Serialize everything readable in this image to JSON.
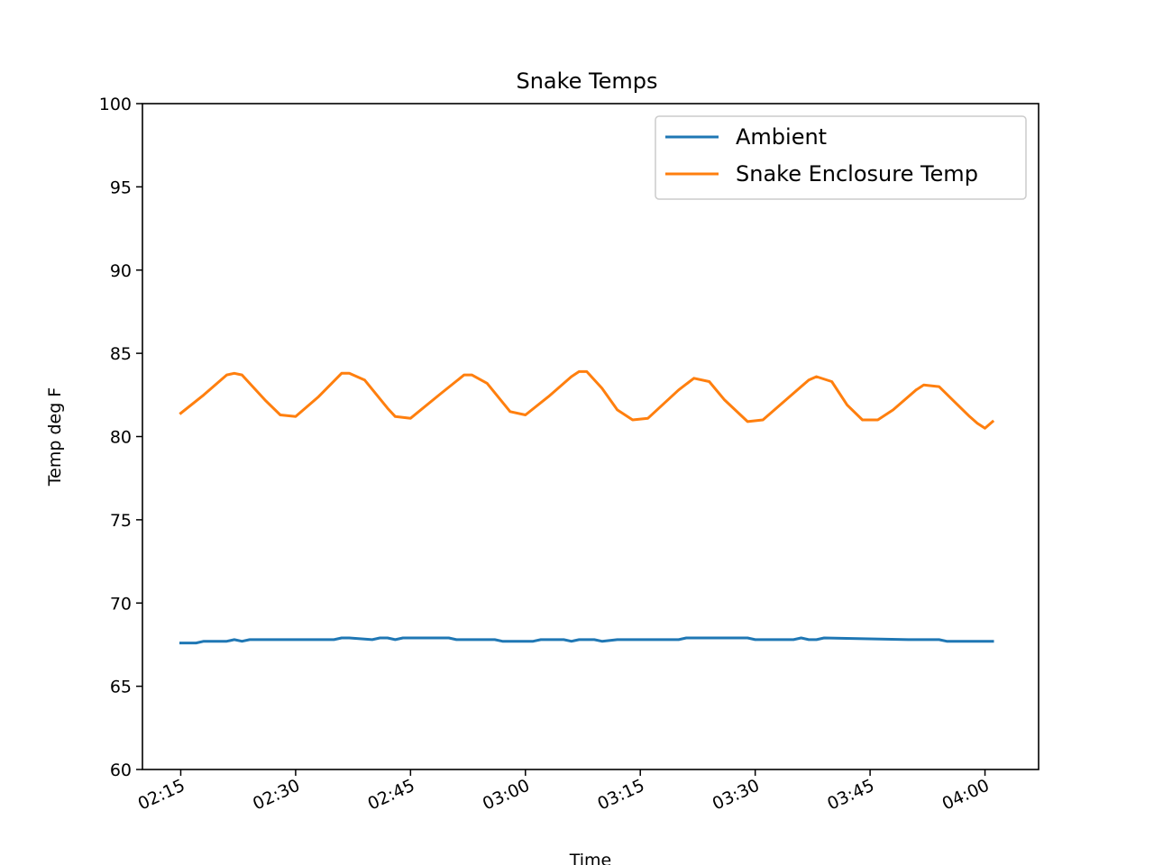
{
  "chart_data": {
    "type": "line",
    "title": "Snake Temps",
    "xlabel": "Time",
    "ylabel": "Temp deg F",
    "ylim": [
      60,
      100
    ],
    "yticks": [
      "60",
      "65",
      "70",
      "75",
      "80",
      "85",
      "90",
      "95",
      "100"
    ],
    "xlim": [
      "02:10",
      "04:07"
    ],
    "xticks": [
      "02:15",
      "02:30",
      "02:45",
      "03:00",
      "03:15",
      "03:30",
      "03:45",
      "04:00"
    ],
    "grid": false,
    "legend_position": "upper right",
    "series": [
      {
        "name": "Ambient",
        "color": "#1f77b4",
        "x": [
          "02:15",
          "02:17",
          "02:18",
          "02:21",
          "02:22",
          "02:23",
          "02:24",
          "02:30",
          "02:35",
          "02:36",
          "02:37",
          "02:40",
          "02:41",
          "02:42",
          "02:43",
          "02:44",
          "02:50",
          "02:51",
          "02:56",
          "02:57",
          "03:01",
          "03:02",
          "03:05",
          "03:06",
          "03:07",
          "03:09",
          "03:10",
          "03:12",
          "03:20",
          "03:21",
          "03:25",
          "03:29",
          "03:30",
          "03:35",
          "03:36",
          "03:37",
          "03:38",
          "03:39",
          "03:50",
          "03:54",
          "03:55",
          "04:00",
          "04:01"
        ],
        "values": [
          67.6,
          67.6,
          67.7,
          67.7,
          67.8,
          67.7,
          67.8,
          67.8,
          67.8,
          67.9,
          67.9,
          67.8,
          67.9,
          67.9,
          67.8,
          67.9,
          67.9,
          67.8,
          67.8,
          67.7,
          67.7,
          67.8,
          67.8,
          67.7,
          67.8,
          67.8,
          67.7,
          67.8,
          67.8,
          67.9,
          67.9,
          67.9,
          67.8,
          67.8,
          67.9,
          67.8,
          67.8,
          67.9,
          67.8,
          67.8,
          67.7,
          67.7,
          67.7
        ]
      },
      {
        "name": "Snake Enclosure Temp",
        "color": "#ff7f0e",
        "x": [
          "02:15",
          "02:18",
          "02:21",
          "02:22",
          "02:23",
          "02:26",
          "02:28",
          "02:30",
          "02:33",
          "02:36",
          "02:37",
          "02:39",
          "02:42",
          "02:43",
          "02:45",
          "02:49",
          "02:52",
          "02:53",
          "02:55",
          "02:58",
          "03:00",
          "03:03",
          "03:06",
          "03:07",
          "03:08",
          "03:10",
          "03:12",
          "03:14",
          "03:16",
          "03:20",
          "03:22",
          "03:24",
          "03:26",
          "03:29",
          "03:31",
          "03:34",
          "03:37",
          "03:38",
          "03:40",
          "03:42",
          "03:44",
          "03:46",
          "03:48",
          "03:51",
          "03:52",
          "03:54",
          "03:56",
          "03:58",
          "03:59",
          "04:00",
          "04:01"
        ],
        "values": [
          81.4,
          82.5,
          83.7,
          83.8,
          83.7,
          82.2,
          81.3,
          81.2,
          82.4,
          83.8,
          83.8,
          83.4,
          81.7,
          81.2,
          81.1,
          82.6,
          83.7,
          83.7,
          83.2,
          81.5,
          81.3,
          82.4,
          83.6,
          83.9,
          83.9,
          82.9,
          81.6,
          81.0,
          81.1,
          82.8,
          83.5,
          83.3,
          82.2,
          80.9,
          81.0,
          82.2,
          83.4,
          83.6,
          83.3,
          81.9,
          81.0,
          81.0,
          81.6,
          82.8,
          83.1,
          83.0,
          82.1,
          81.2,
          80.8,
          80.5,
          80.9
        ]
      }
    ]
  }
}
